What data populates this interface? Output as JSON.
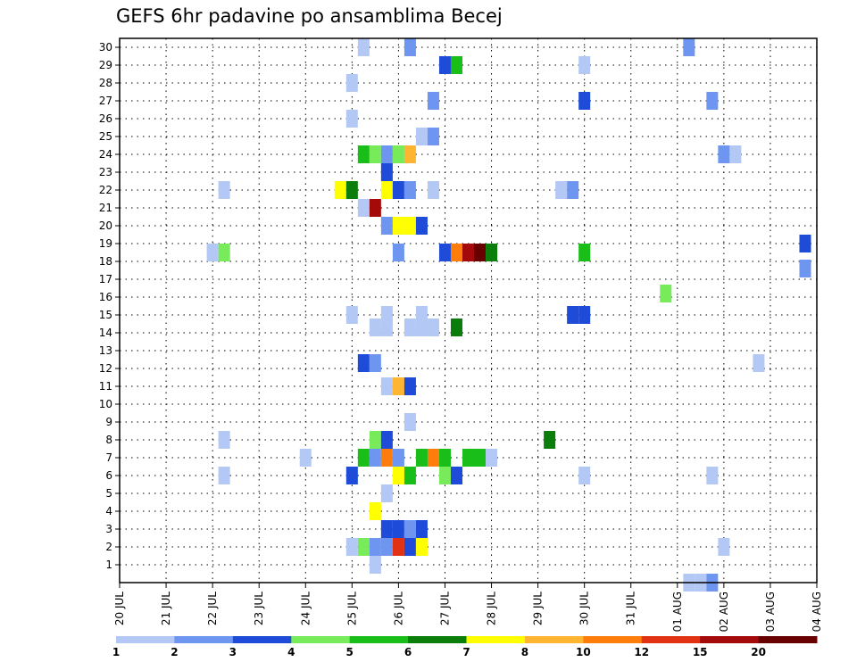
{
  "chart_data": {
    "type": "heatmap",
    "title": "GEFS 6hr padavine po ansamblima Becej",
    "xlabel": "",
    "ylabel": "",
    "x_labels": [
      "20 JUL",
      "21 JUL",
      "22 JUL",
      "23 JUL",
      "24 JUL",
      "25 JUL",
      "26 JUL",
      "27 JUL",
      "28 JUL",
      "29 JUL",
      "30 JUL",
      "31 JUL",
      "01 AUG",
      "02 AUG",
      "03 AUG",
      "04 AUG"
    ],
    "x_range_days": [
      0,
      15
    ],
    "y_labels": [
      "1",
      "2",
      "3",
      "4",
      "5",
      "6",
      "7",
      "8",
      "9",
      "10",
      "11",
      "12",
      "13",
      "14",
      "15",
      "16",
      "17",
      "18",
      "19",
      "20",
      "21",
      "22",
      "23",
      "24",
      "25",
      "26",
      "27",
      "28",
      "29",
      "30"
    ],
    "y_range": [
      0,
      30.5
    ],
    "grid": true,
    "colorbar_labels": [
      "1",
      "2",
      "3",
      "4",
      "5",
      "6",
      "7",
      "8",
      "10",
      "12",
      "15",
      "20"
    ],
    "colorbar_colors": [
      "#b4c8f5",
      "#6e96f0",
      "#1e4bd7",
      "#78eb5a",
      "#19be19",
      "#0a7d0a",
      "#ffff00",
      "#ffb432",
      "#ff7d0a",
      "#e13214",
      "#a50a0a",
      "#690000"
    ],
    "cells": [
      [
        30,
        5.25,
        1
      ],
      [
        30,
        6.25,
        2
      ],
      [
        30,
        12.25,
        2
      ],
      [
        29,
        7.0,
        3
      ],
      [
        29,
        7.25,
        5
      ],
      [
        29,
        10.0,
        1
      ],
      [
        28,
        5.0,
        1
      ],
      [
        27,
        6.75,
        2
      ],
      [
        27,
        10.0,
        3
      ],
      [
        27,
        12.75,
        2
      ],
      [
        26,
        5.0,
        1
      ],
      [
        25,
        6.5,
        1
      ],
      [
        25,
        6.75,
        2
      ],
      [
        24,
        5.25,
        5
      ],
      [
        24,
        5.5,
        4
      ],
      [
        24,
        5.75,
        2
      ],
      [
        24,
        6.0,
        4
      ],
      [
        24,
        6.25,
        8
      ],
      [
        24,
        13.0,
        2
      ],
      [
        24,
        13.25,
        1
      ],
      [
        23,
        5.75,
        3
      ],
      [
        22,
        2.25,
        1
      ],
      [
        22,
        4.75,
        7
      ],
      [
        22,
        5.0,
        6
      ],
      [
        22,
        5.75,
        7
      ],
      [
        22,
        6.0,
        3
      ],
      [
        22,
        6.25,
        2
      ],
      [
        22,
        6.75,
        1
      ],
      [
        22,
        9.5,
        1
      ],
      [
        22,
        9.75,
        2
      ],
      [
        21,
        5.25,
        1
      ],
      [
        21,
        5.5,
        11
      ],
      [
        20,
        5.75,
        2
      ],
      [
        20,
        6.0,
        7
      ],
      [
        20,
        6.25,
        7
      ],
      [
        20,
        6.5,
        3
      ],
      [
        19,
        14.75,
        3
      ],
      [
        18.5,
        2.0,
        1
      ],
      [
        18.5,
        2.25,
        4
      ],
      [
        18.5,
        6.0,
        2
      ],
      [
        18.5,
        7.0,
        3
      ],
      [
        18.5,
        7.25,
        9
      ],
      [
        18.5,
        7.5,
        11
      ],
      [
        18.5,
        7.75,
        12
      ],
      [
        18.5,
        8.0,
        6
      ],
      [
        18.5,
        10.0,
        5
      ],
      [
        17.6,
        14.75,
        2
      ],
      [
        16.2,
        11.75,
        4
      ],
      [
        15,
        5.0,
        1
      ],
      [
        15,
        5.75,
        1
      ],
      [
        15,
        6.5,
        1
      ],
      [
        15,
        9.75,
        3
      ],
      [
        15,
        10.0,
        3
      ],
      [
        14.3,
        5.5,
        1
      ],
      [
        14.3,
        5.75,
        1
      ],
      [
        14.3,
        6.25,
        1
      ],
      [
        14.3,
        6.5,
        1
      ],
      [
        14.3,
        6.75,
        1
      ],
      [
        14.3,
        7.25,
        6
      ],
      [
        12.3,
        5.25,
        3
      ],
      [
        12.3,
        5.5,
        2
      ],
      [
        12.3,
        13.75,
        1
      ],
      [
        11,
        5.75,
        1
      ],
      [
        11,
        6.0,
        8
      ],
      [
        11,
        6.25,
        3
      ],
      [
        9,
        6.25,
        1
      ],
      [
        8,
        2.25,
        1
      ],
      [
        8,
        5.5,
        4
      ],
      [
        8,
        5.75,
        3
      ],
      [
        8,
        9.25,
        6
      ],
      [
        7,
        4.0,
        1
      ],
      [
        7,
        5.25,
        5
      ],
      [
        7,
        5.5,
        2
      ],
      [
        7,
        5.75,
        9
      ],
      [
        7,
        6.0,
        2
      ],
      [
        7,
        6.5,
        5
      ],
      [
        7,
        6.75,
        9
      ],
      [
        7,
        7.0,
        5
      ],
      [
        7,
        7.5,
        5
      ],
      [
        7,
        7.75,
        5
      ],
      [
        7,
        8.0,
        1
      ],
      [
        6,
        2.25,
        1
      ],
      [
        6,
        5.0,
        3
      ],
      [
        6,
        6.0,
        7
      ],
      [
        6,
        6.25,
        5
      ],
      [
        6,
        7.0,
        4
      ],
      [
        6,
        7.25,
        3
      ],
      [
        6,
        10.0,
        1
      ],
      [
        6,
        12.75,
        1
      ],
      [
        5,
        5.75,
        1
      ],
      [
        4,
        5.5,
        7
      ],
      [
        3,
        5.75,
        3
      ],
      [
        3,
        6.0,
        3
      ],
      [
        3,
        6.25,
        2
      ],
      [
        3,
        6.5,
        3
      ],
      [
        2,
        5.0,
        1
      ],
      [
        2,
        5.25,
        4
      ],
      [
        2,
        5.5,
        2
      ],
      [
        2,
        5.75,
        2
      ],
      [
        2,
        6.0,
        10
      ],
      [
        2,
        6.25,
        3
      ],
      [
        2,
        6.5,
        7
      ],
      [
        2,
        13.0,
        1
      ],
      [
        1,
        5.5,
        1
      ],
      [
        0,
        12.25,
        1
      ],
      [
        0,
        12.5,
        1
      ],
      [
        0,
        12.75,
        2
      ]
    ]
  }
}
